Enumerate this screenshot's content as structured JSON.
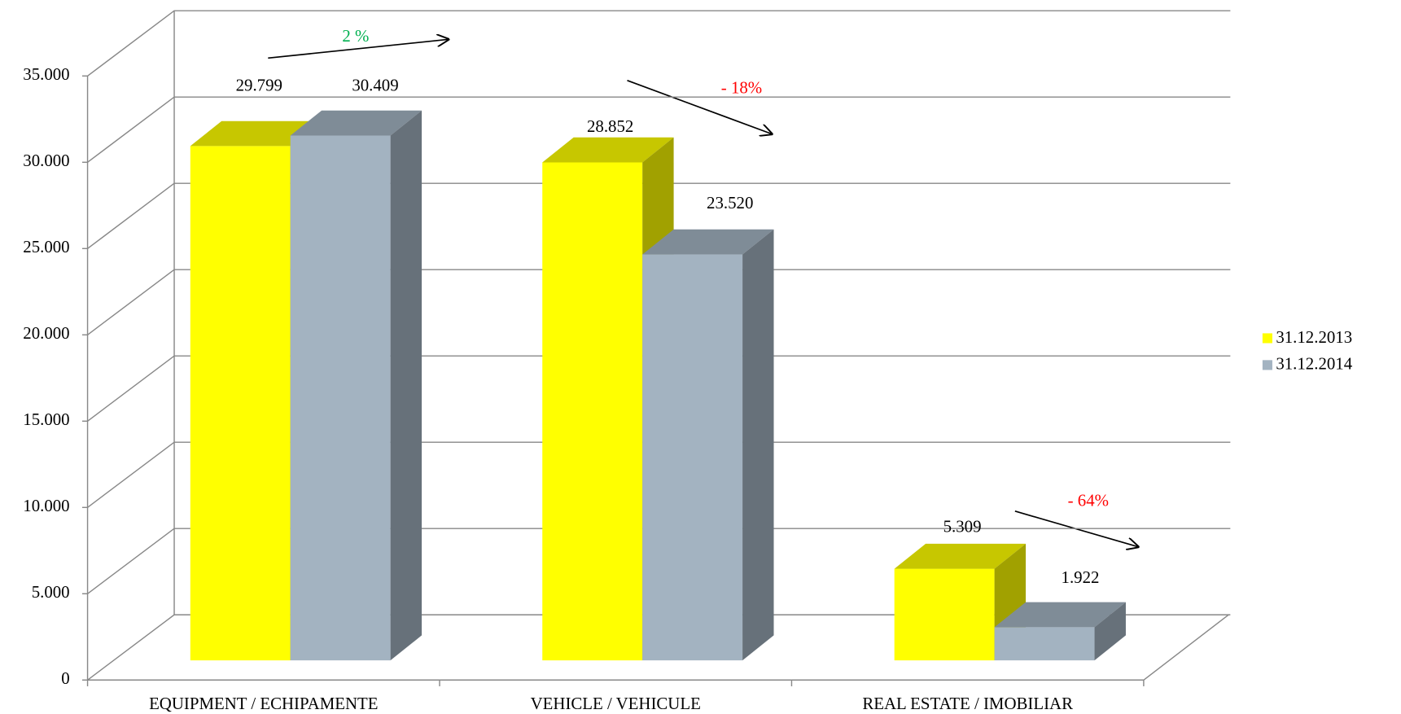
{
  "chart_data": {
    "type": "bar3d",
    "categories": [
      "EQUIPMENT / ECHIPAMENTE",
      "VEHICLE / VEHICULE",
      "REAL ESTATE / IMOBILIAR"
    ],
    "series": [
      {
        "name": "31.12.2013",
        "color": "#ffff00",
        "values": [
          29799,
          28852,
          5309
        ],
        "value_labels": [
          "29.799",
          "28.852",
          "5.309"
        ]
      },
      {
        "name": "31.12.2014",
        "color": "#a3b3c1",
        "values": [
          30409,
          23520,
          1922
        ],
        "value_labels": [
          "30.409",
          "23.520",
          "1.922"
        ]
      }
    ],
    "ylim": [
      0,
      35000
    ],
    "yticks": [
      0,
      {
        "value": 5000,
        "label": "5.000"
      },
      {
        "value": 10000,
        "label": "10.000"
      },
      {
        "value": 15000,
        "label": "15.000"
      },
      {
        "value": 20000,
        "label": "20.000"
      },
      {
        "value": 25000,
        "label": "25.000"
      },
      {
        "value": 30000,
        "label": "30.000"
      },
      {
        "value": 35000,
        "label": "35.000"
      }
    ],
    "grid": true,
    "legend": "right",
    "annotations": [
      {
        "text": "2 %",
        "color": "#00b050"
      },
      {
        "text": "- 18%",
        "color": "#ff0000"
      },
      {
        "text": "- 64%",
        "color": "#ff0000"
      }
    ]
  }
}
